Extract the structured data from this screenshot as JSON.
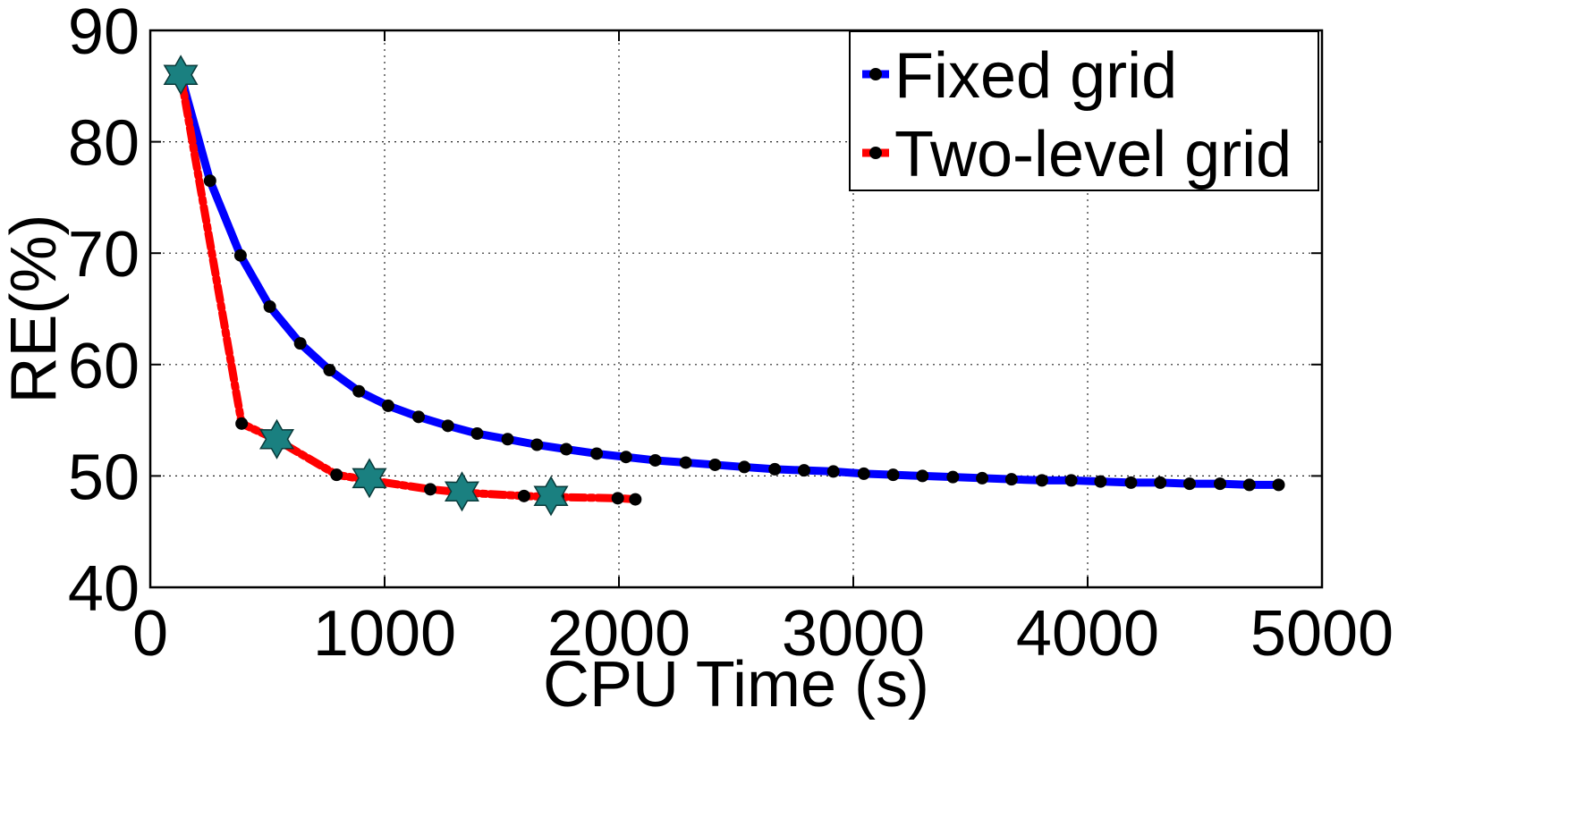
{
  "chart_data": {
    "type": "line",
    "title": "",
    "xlabel": "CPU Time (s)",
    "ylabel": "RE(%)",
    "xlim": [
      0,
      5000
    ],
    "ylim": [
      40,
      90
    ],
    "xticks": [
      "0",
      "1000",
      "2000",
      "3000",
      "4000",
      "5000"
    ],
    "yticks": [
      "40",
      "50",
      "60",
      "70",
      "80",
      "90"
    ],
    "grid": true,
    "legend_position": "top-right",
    "series": [
      {
        "name": "Fixed grid",
        "color": "#0000ff",
        "line_style": "solid",
        "marker": "circle",
        "marker_color": "#000000",
        "x": [
          130,
          255,
          385,
          510,
          640,
          765,
          890,
          1015,
          1145,
          1270,
          1395,
          1525,
          1650,
          1775,
          1905,
          2030,
          2155,
          2285,
          2410,
          2535,
          2665,
          2790,
          2915,
          3045,
          3170,
          3295,
          3425,
          3550,
          3675,
          3805,
          3930,
          4055,
          4185,
          4310,
          4435,
          4565,
          4690,
          4815
        ],
        "y": [
          86,
          76.5,
          69.8,
          65.2,
          61.9,
          59.5,
          57.6,
          56.3,
          55.3,
          54.5,
          53.8,
          53.3,
          52.8,
          52.4,
          52.0,
          51.7,
          51.4,
          51.2,
          51.0,
          50.8,
          50.6,
          50.5,
          50.4,
          50.2,
          50.1,
          50.0,
          49.9,
          49.8,
          49.7,
          49.6,
          49.6,
          49.5,
          49.4,
          49.4,
          49.3,
          49.3,
          49.2,
          49.2
        ]
      },
      {
        "name": "Two-level grid",
        "color": "#ff0000",
        "line_style": "dash-dot",
        "marker": "circle",
        "marker_color": "#000000",
        "x": [
          130,
          390,
          535,
          795,
          940,
          1195,
          1340,
          1595,
          1740,
          1995,
          2070
        ],
        "y": [
          86,
          54.7,
          53.3,
          50.1,
          49.6,
          48.8,
          48.5,
          48.2,
          48.1,
          48.0,
          47.9
        ]
      }
    ],
    "highlight_points": {
      "label": "",
      "color": "#1a8080",
      "marker": "star",
      "x": [
        130,
        540,
        935,
        1330,
        1710
      ],
      "y": [
        86,
        53.3,
        49.8,
        48.6,
        48.2
      ]
    }
  }
}
